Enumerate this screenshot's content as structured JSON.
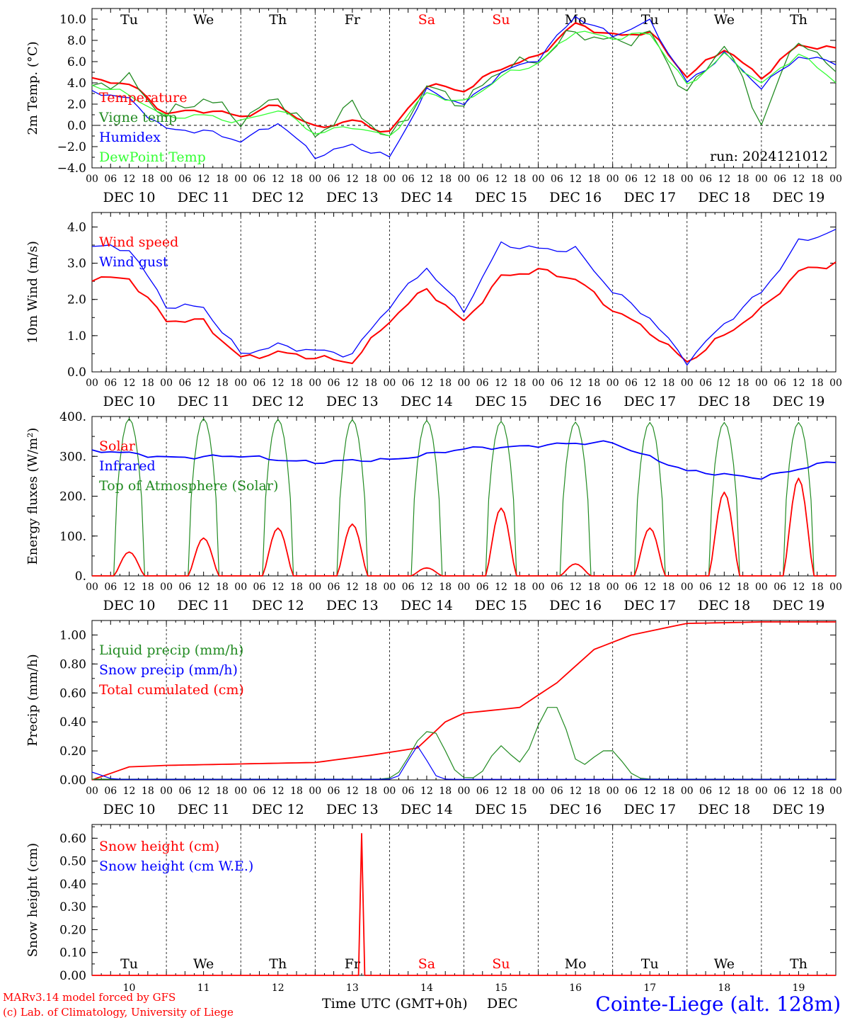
{
  "meteogram": {
    "run": "run: 2024121012",
    "station": "Cointe-Liege (alt. 128m)",
    "credit_line1": "MARv3.14 model forced by GFS",
    "credit_line2": "(c) Lab. of Climatology, University of Liege",
    "time_axis_label": "Time UTC (GMT+0h)",
    "month_label": "DEC"
  },
  "colors": {
    "red": "#ff0000",
    "green": "#228b22",
    "blue": "#0000ff",
    "light_green": "#33ff33",
    "weekend": "#ff0000",
    "axis": "#000000"
  },
  "chart_data": [
    {
      "type": "line",
      "title": "",
      "ylabel": "2m Temp. (°C)",
      "ylim": [
        -4,
        11
      ],
      "yticks": [
        "−4.0",
        "−2.0",
        "0.0",
        "2.0",
        "4.0",
        "6.0",
        "8.0",
        "10.0"
      ],
      "zero_line": true,
      "x": [
        "DEC 10 00",
        "DEC 10 12",
        "DEC 11 00",
        "DEC 11 12",
        "DEC 12 00",
        "DEC 12 12",
        "DEC 13 00",
        "DEC 13 12",
        "DEC 14 00",
        "DEC 14 12",
        "DEC 15 00",
        "DEC 15 12",
        "DEC 16 00",
        "DEC 16 12",
        "DEC 17 00",
        "DEC 17 12",
        "DEC 18 00",
        "DEC 18 12",
        "DEC 19 00",
        "DEC 19 12",
        "DEC 20 00"
      ],
      "series": [
        {
          "name": "Temperature",
          "color": "#ff0000",
          "values": [
            4.2,
            3.9,
            1.2,
            1.4,
            0.8,
            2.0,
            -0.3,
            0.4,
            -0.6,
            3.8,
            3.2,
            5.5,
            6.5,
            9.5,
            8.5,
            8.8,
            4.5,
            7.3,
            4.5,
            7.5,
            7.2
          ]
        },
        {
          "name": "Vigne temp",
          "color": "#228b22",
          "values": [
            3.4,
            4.4,
            1.0,
            2.4,
            0.5,
            2.8,
            -1.2,
            1.9,
            -1.2,
            3.4,
            2.0,
            5.6,
            6.0,
            8.8,
            8.0,
            8.5,
            2.8,
            8.0,
            0.2,
            8.2,
            5.0
          ]
        },
        {
          "name": "Humidex",
          "color": "#0000ff",
          "values": [
            3.2,
            2.5,
            -0.4,
            -0.6,
            -1.4,
            0.3,
            -3.0,
            -1.8,
            -3.0,
            3.2,
            2.0,
            5.0,
            6.2,
            10.3,
            8.5,
            9.7,
            4.0,
            6.8,
            3.5,
            6.5,
            6.0
          ]
        },
        {
          "name": "DewPoint Temp",
          "color": "#33ff33",
          "values": [
            3.8,
            3.0,
            0.7,
            0.9,
            0.4,
            1.5,
            -0.8,
            0.0,
            -1.1,
            3.0,
            2.2,
            4.6,
            5.8,
            9.0,
            8.2,
            8.6,
            3.8,
            6.7,
            3.8,
            6.8,
            4.2
          ]
        }
      ]
    },
    {
      "type": "line",
      "title": "",
      "ylabel": "10m Wind (m/s)",
      "ylim": [
        0,
        4.4
      ],
      "yticks": [
        "0.0",
        "1.0",
        "2.0",
        "3.0",
        "4.0"
      ],
      "x": [
        "DEC 10 00",
        "DEC 10 12",
        "DEC 11 00",
        "DEC 11 12",
        "DEC 12 00",
        "DEC 12 12",
        "DEC 13 00",
        "DEC 13 12",
        "DEC 14 00",
        "DEC 14 12",
        "DEC 15 00",
        "DEC 15 12",
        "DEC 16 00",
        "DEC 16 12",
        "DEC 17 00",
        "DEC 17 12",
        "DEC 18 00",
        "DEC 18 12",
        "DEC 19 00",
        "DEC 19 12",
        "DEC 20 00"
      ],
      "series": [
        {
          "name": "Wind speed",
          "color": "#ff0000",
          "values": [
            2.6,
            2.6,
            1.4,
            1.4,
            0.4,
            0.5,
            0.4,
            0.3,
            1.4,
            2.3,
            1.4,
            2.6,
            2.8,
            2.6,
            1.7,
            1.1,
            0.3,
            1.0,
            1.7,
            2.8,
            3.0
          ]
        },
        {
          "name": "Wind gust",
          "color": "#0000ff",
          "values": [
            3.5,
            3.4,
            1.8,
            1.8,
            0.5,
            0.7,
            0.6,
            0.5,
            1.8,
            2.9,
            1.7,
            3.5,
            3.4,
            3.4,
            2.2,
            1.5,
            0.3,
            1.3,
            2.2,
            3.6,
            3.9
          ]
        }
      ]
    },
    {
      "type": "line",
      "title": "",
      "ylabel": "Energy fluxes (W/m²)",
      "ylim": [
        0,
        400
      ],
      "yticks": [
        "0.",
        "100.",
        "200.",
        "300.",
        "400."
      ],
      "series": [
        {
          "name": "Solar",
          "color": "#ff0000",
          "daily_peaks": [
            60,
            95,
            120,
            130,
            20,
            170,
            30,
            120,
            210,
            245
          ]
        },
        {
          "name": "Infrared",
          "color": "#0000ff",
          "x": [
            "DEC 10 00",
            "DEC 11 00",
            "DEC 12 00",
            "DEC 13 00",
            "DEC 14 00",
            "DEC 15 00",
            "DEC 16 00",
            "DEC 17 00",
            "DEC 18 00",
            "DEC 19 00",
            "DEC 20 00"
          ],
          "values": [
            315,
            298,
            300,
            285,
            292,
            318,
            328,
            335,
            262,
            247,
            288
          ]
        },
        {
          "name": "Top of Atmosphere (Solar)",
          "color": "#228b22",
          "daily_peaks": [
            395,
            395,
            393,
            392,
            390,
            388,
            386,
            385,
            385,
            385
          ]
        }
      ]
    },
    {
      "type": "line",
      "title": "",
      "ylabel": "Precip (mm/h)",
      "ylim": [
        0,
        1.1
      ],
      "yticks": [
        "0.00",
        "0.20",
        "0.40",
        "0.60",
        "0.80",
        "1.00"
      ],
      "x": [
        "DEC 10 00",
        "DEC 10 12",
        "DEC 11 00",
        "DEC 12 00",
        "DEC 13 00",
        "DEC 13 18",
        "DEC 14 09",
        "DEC 14 18",
        "DEC 15 00",
        "DEC 15 18",
        "DEC 16 06",
        "DEC 16 18",
        "DEC 17 06",
        "DEC 18 00",
        "DEC 19 00",
        "DEC 20 00"
      ],
      "series": [
        {
          "name": "Liquid precip (mm/h)",
          "color": "#228b22",
          "x": [
            "DEC 14 09",
            "DEC 14 15",
            "DEC 15 12",
            "DEC 16 00",
            "DEC 16 06",
            "DEC 16 18",
            "DEC 17 00"
          ],
          "values": [
            0.2,
            0.27,
            0.23,
            0.26,
            0.47,
            0.11,
            0.17
          ]
        },
        {
          "name": "Snow precip (mm/h)",
          "color": "#0000ff",
          "x": [
            "DEC 10 00",
            "DEC 14 09"
          ],
          "values": [
            0.05,
            0.23
          ]
        },
        {
          "name": "Total cumulated (cm)",
          "color": "#ff0000",
          "values": [
            0.0,
            0.09,
            0.1,
            0.11,
            0.12,
            0.17,
            0.22,
            0.4,
            0.46,
            0.5,
            0.67,
            0.9,
            1.0,
            1.08,
            1.09,
            1.09
          ]
        }
      ]
    },
    {
      "type": "line",
      "title": "",
      "ylabel": "Snow height (cm)",
      "ylim": [
        0,
        0.66
      ],
      "yticks": [
        "0.00",
        "0.10",
        "0.20",
        "0.30",
        "0.40",
        "0.50",
        "0.60"
      ],
      "series": [
        {
          "name": "Snow height (cm)",
          "color": "#ff0000",
          "x": [
            "DEC 13 15"
          ],
          "values": [
            0.62
          ]
        },
        {
          "name": "Snow height (cm W.E.)",
          "color": "#0000ff",
          "values": [
            0.0
          ]
        }
      ]
    }
  ],
  "days": [
    "Tu",
    "We",
    "Th",
    "Fr",
    "Sa",
    "Su",
    "Mo",
    "Tu",
    "We",
    "Th"
  ],
  "weekend_days": [
    "Sa",
    "Su"
  ],
  "dates": [
    "DEC 10",
    "DEC 11",
    "DEC 12",
    "DEC 13",
    "DEC 14",
    "DEC 15",
    "DEC 16",
    "DEC 17",
    "DEC 18",
    "DEC 19"
  ],
  "date_numbers": [
    "10",
    "11",
    "12",
    "13",
    "14",
    "15",
    "16",
    "17",
    "18",
    "19"
  ],
  "hour_ticks": [
    "00",
    "06",
    "12",
    "18"
  ],
  "hour_end": "00"
}
